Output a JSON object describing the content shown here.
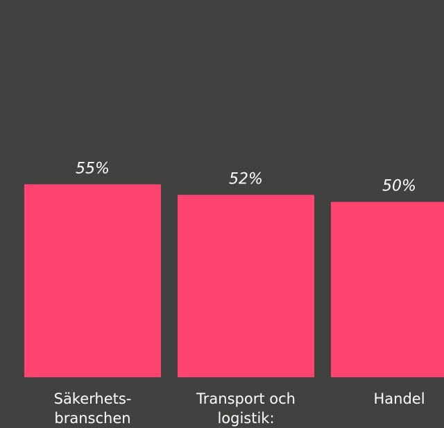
{
  "chart_data": {
    "type": "bar",
    "categories": [
      "Säkerhets-\nbranschen",
      "Transport och\nlogistik:",
      "Handel"
    ],
    "values": [
      55,
      52,
      50
    ],
    "value_labels": [
      "55%",
      "52%",
      "50%"
    ],
    "color": "#ff4470"
  }
}
